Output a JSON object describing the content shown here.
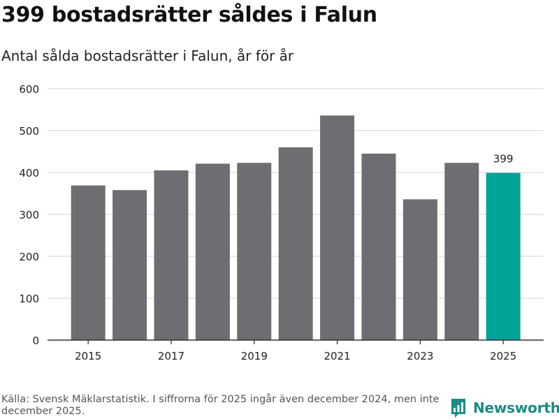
{
  "header": {
    "title": "399 bostadsrätter såldes i Falun",
    "subtitle": "Antal sålda bostadsrätter i Falun, år för år"
  },
  "chart_data": {
    "type": "bar",
    "categories": [
      "2015",
      "2016",
      "2017",
      "2018",
      "2019",
      "2020",
      "2021",
      "2022",
      "2023",
      "2024",
      "2025"
    ],
    "values": [
      369,
      358,
      405,
      421,
      423,
      460,
      536,
      445,
      336,
      423,
      399
    ],
    "x_tick_labels": [
      "2015",
      "2017",
      "2019",
      "2021",
      "2023",
      "2025"
    ],
    "y_ticks": [
      0,
      100,
      200,
      300,
      400,
      500,
      600
    ],
    "ylim": [
      0,
      600
    ],
    "xlabel": "",
    "ylabel": "",
    "grid": true,
    "highlight_category": "2025",
    "data_labels": [
      {
        "category": "2025",
        "text": "399"
      }
    ],
    "colors": {
      "bar": "#6e6d72",
      "highlight": "#00a396",
      "grid": "#dcdcdc",
      "axis": "#333333"
    }
  },
  "footer": {
    "source": "Källa: Svensk Mäklarstatistik. I siffrorna för 2025 ingår även december 2024, men inte december 2025.",
    "brand": "Newsworthy",
    "brand_icon": "newsworthy-logo-icon",
    "brand_color": "#1a8c84"
  }
}
